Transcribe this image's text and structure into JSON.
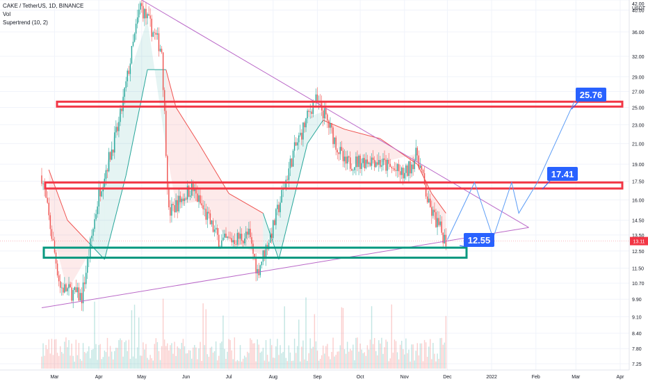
{
  "header": {
    "symbol_line": "CAKE / TetherUS, 1D, BINANCE",
    "indicator_vol": "Vol",
    "indicator_supertrend": "Supertrend (10, 2)"
  },
  "price_scale": {
    "currency": "USDT",
    "ticks": [
      "42.00",
      "40.00",
      "36.00",
      "32.00",
      "29.00",
      "27.00",
      "25.00",
      "23.00",
      "21.00",
      "19.00",
      "17.50",
      "16.00",
      "14.50",
      "13.50",
      "12.50",
      "11.50",
      "10.70",
      "9.90",
      "9.10",
      "8.40",
      "7.80",
      "7.25"
    ],
    "last_price": "13.11"
  },
  "time_scale": {
    "ticks": [
      "Mar",
      "Apr",
      "May",
      "Jun",
      "Jul",
      "Aug",
      "Sep",
      "Oct",
      "Nov",
      "Dec",
      "2022",
      "Feb",
      "Mar",
      "Apr"
    ]
  },
  "colors": {
    "up": "#26a69a",
    "down": "#ef5350",
    "resistance_box": "#f23645",
    "support_box": "#089981",
    "trendline": "#ba68c8",
    "projection": "#5b9cf6",
    "label_bg": "#2962ff",
    "last_price_bg": "#f23645"
  },
  "chart_data": {
    "type": "candlestick",
    "title": "CAKE / TetherUS, 1D, BINANCE",
    "scale": "log",
    "ylim": [
      7.25,
      42.0
    ],
    "levels": [
      {
        "label": "25.76",
        "value": 25.76
      },
      {
        "label": "17.41",
        "value": 17.41
      },
      {
        "label": "12.55",
        "value": 12.55
      }
    ],
    "resistance_zones": [
      [
        25.1,
        25.7
      ],
      [
        16.9,
        17.4
      ]
    ],
    "support_zone": [
      12.1,
      12.7
    ],
    "trendlines": [
      {
        "name": "descending",
        "from": [
          "2021-05-01",
          42.0
        ],
        "to": [
          "2022-01-27",
          14.0
        ]
      },
      {
        "name": "ascending",
        "from": [
          "2021-02-20",
          9.5
        ],
        "to": [
          "2022-01-27",
          14.0
        ]
      }
    ],
    "projection_path": [
      [
        "2021-12-01",
        13.2
      ],
      [
        "2021-12-20",
        17.4
      ],
      [
        "2022-01-02",
        13.3
      ],
      [
        "2022-01-15",
        17.4
      ],
      [
        "2022-01-20",
        15.0
      ],
      [
        "2022-02-02",
        17.4
      ],
      [
        "2022-02-28",
        25.76
      ]
    ],
    "close_path": [
      [
        "2021-02-20",
        18.0
      ],
      [
        "2021-03-05",
        10.5
      ],
      [
        "2021-03-20",
        10.0
      ],
      [
        "2021-04-01",
        16.5
      ],
      [
        "2021-04-15",
        23.0
      ],
      [
        "2021-04-30",
        41.0
      ],
      [
        "2021-05-15",
        33.0
      ],
      [
        "2021-05-20",
        15.0
      ],
      [
        "2021-06-05",
        17.0
      ],
      [
        "2021-06-25",
        13.0
      ],
      [
        "2021-07-15",
        13.5
      ],
      [
        "2021-07-21",
        11.3
      ],
      [
        "2021-08-01",
        14.0
      ],
      [
        "2021-08-15",
        20.0
      ],
      [
        "2021-08-30",
        26.0
      ],
      [
        "2021-09-05",
        24.5
      ],
      [
        "2021-09-20",
        19.0
      ],
      [
        "2021-10-10",
        19.5
      ],
      [
        "2021-11-01",
        18.0
      ],
      [
        "2021-11-10",
        20.0
      ],
      [
        "2021-11-18",
        15.5
      ],
      [
        "2021-11-30",
        13.11
      ]
    ],
    "supertrend_path": [
      [
        "2021-02-25",
        18.5
      ],
      [
        "2021-03-10",
        14.5
      ],
      [
        "2021-03-25",
        13.0
      ],
      [
        "2021-04-05",
        12.0
      ],
      [
        "2021-04-20",
        18.0
      ],
      [
        "2021-05-05",
        30.0
      ],
      [
        "2021-05-18",
        30.0
      ],
      [
        "2021-05-25",
        25.0
      ],
      [
        "2021-06-10",
        21.0
      ],
      [
        "2021-07-01",
        16.5
      ],
      [
        "2021-07-25",
        15.0
      ],
      [
        "2021-08-05",
        12.0
      ],
      [
        "2021-08-25",
        21.0
      ],
      [
        "2021-09-05",
        23.5
      ],
      [
        "2021-09-20",
        22.5
      ],
      [
        "2021-10-15",
        21.5
      ],
      [
        "2021-11-10",
        19.0
      ],
      [
        "2021-11-20",
        16.5
      ],
      [
        "2021-11-30",
        15.0
      ]
    ]
  }
}
